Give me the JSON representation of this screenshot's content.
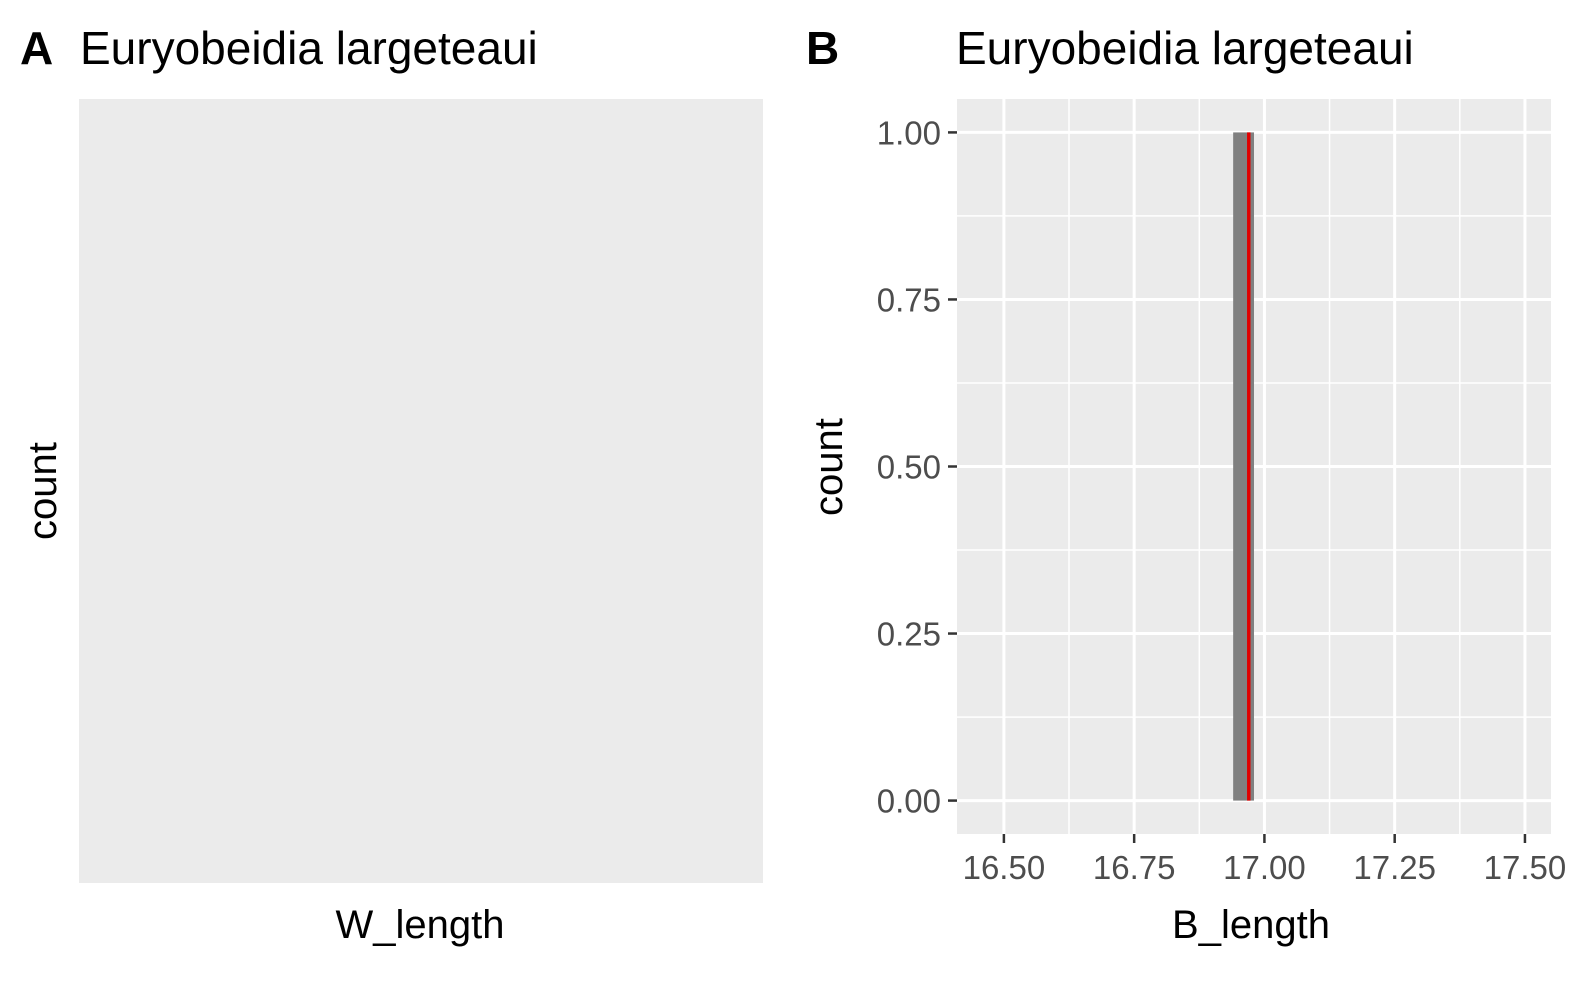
{
  "chart_data": [
    {
      "tag": "A",
      "type": "bar",
      "title": "Euryobeidia largeteaui",
      "xlabel": "W_length",
      "ylabel": "count",
      "values": [],
      "grid": false,
      "background": "#ebebeb"
    },
    {
      "tag": "B",
      "type": "bar",
      "title": "Euryobeidia largeteaui",
      "xlabel": "B_length",
      "ylabel": "count",
      "xlim": [
        16.41,
        17.55
      ],
      "ylim": [
        -0.05,
        1.05
      ],
      "x_ticks": [
        16.5,
        16.75,
        17.0,
        17.25,
        17.5
      ],
      "x_tick_labels": [
        "16.50",
        "16.75",
        "17.00",
        "17.25",
        "17.50"
      ],
      "y_ticks": [
        0,
        0.25,
        0.5,
        0.75,
        1.0
      ],
      "y_tick_labels": [
        "0.00",
        "0.25",
        "0.50",
        "0.75",
        "1.00"
      ],
      "bars": [
        {
          "x_min": 16.94,
          "x_max": 16.98,
          "count": 1
        }
      ],
      "reference_line": {
        "x": 16.97,
        "color": "#e00000"
      },
      "bar_color": "#808080",
      "grid": true,
      "background": "#ebebeb"
    }
  ]
}
